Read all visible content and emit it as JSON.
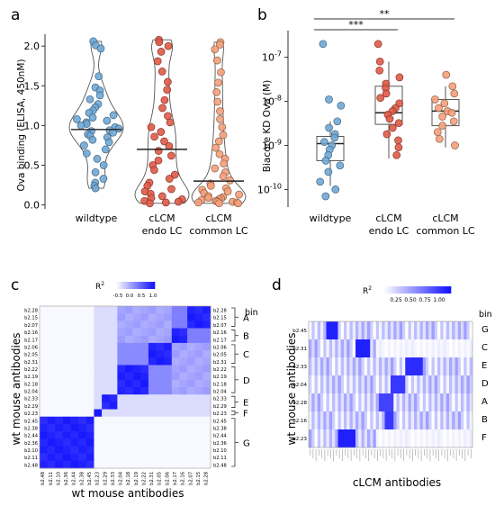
{
  "panels": {
    "a": "a",
    "b": "b",
    "c": "c",
    "d": "d"
  },
  "chart_data": [
    {
      "id": "a",
      "type": "violin",
      "ylabel": "Ova binding (ELISA, 450nM)",
      "ylim": [
        -0.05,
        2.15
      ],
      "yticks": [
        "0.0",
        "0.5",
        "1.0",
        "1.5",
        "2.0"
      ],
      "categories": [
        [
          "wildtype"
        ],
        [
          "cLCM",
          "endo LC"
        ],
        [
          "cLCM",
          "common LC"
        ]
      ],
      "colors": [
        "#6fa8d6",
        "#e05a47",
        "#f4a07a"
      ],
      "medians": [
        0.95,
        0.7,
        0.3
      ],
      "series": [
        {
          "values": [
            2.06,
            2.01,
            1.97,
            1.62,
            1.48,
            1.44,
            1.38,
            1.33,
            1.27,
            1.23,
            1.19,
            1.16,
            1.13,
            1.1,
            1.08,
            1.06,
            1.04,
            1.02,
            1.0,
            0.98,
            0.96,
            0.94,
            0.93,
            0.91,
            0.89,
            0.87,
            0.85,
            0.82,
            0.79,
            0.75,
            0.7,
            0.65,
            0.58,
            0.5,
            0.41,
            0.33,
            0.28,
            0.24,
            0.21
          ]
        },
        {
          "values": [
            2.08,
            2.05,
            2.0,
            1.93,
            1.81,
            1.68,
            1.55,
            1.45,
            1.32,
            1.22,
            1.12,
            1.04,
            0.98,
            0.92,
            0.86,
            0.8,
            0.74,
            0.68,
            0.62,
            0.56,
            0.5,
            0.44,
            0.38,
            0.33,
            0.28,
            0.24,
            0.2,
            0.17,
            0.14,
            0.11,
            0.09,
            0.07,
            0.05,
            0.04,
            0.03,
            0.02
          ]
        },
        {
          "values": [
            2.05,
            2.02,
            1.96,
            1.82,
            1.67,
            1.54,
            1.42,
            1.3,
            1.18,
            1.08,
            0.98,
            0.88,
            0.8,
            0.72,
            0.64,
            0.58,
            0.52,
            0.46,
            0.41,
            0.36,
            0.31,
            0.27,
            0.24,
            0.21,
            0.19,
            0.17,
            0.15,
            0.13,
            0.11,
            0.1,
            0.09,
            0.08,
            0.07,
            0.06,
            0.05,
            0.05,
            0.04,
            0.04,
            0.03,
            0.03,
            0.02,
            0.02
          ]
        }
      ]
    },
    {
      "id": "b",
      "type": "box",
      "ylabel": "Biacore KD Ova (M)",
      "ylim_log10": [
        -10.4,
        -6.6
      ],
      "yticks": [
        -10,
        -9,
        -8,
        -7
      ],
      "categories": [
        [
          "wildtype"
        ],
        [
          "cLCM",
          "endo LC"
        ],
        [
          "cLCM",
          "common LC"
        ]
      ],
      "colors": [
        "#6fa8d6",
        "#e05a47",
        "#f4a07a"
      ],
      "boxes": [
        {
          "q1": 4.5e-10,
          "median": 1.1e-09,
          "q3": 1.6e-09,
          "lo": 1.2e-10,
          "hi": 3.5e-09
        },
        {
          "q1": 3e-09,
          "median": 5.5e-09,
          "q3": 2.2e-08,
          "lo": 5e-10,
          "hi": 8e-08
        },
        {
          "q1": 2.8e-09,
          "median": 6e-09,
          "q3": 1.1e-08,
          "lo": 9e-10,
          "hi": 2.2e-08
        }
      ],
      "series": [
        {
          "values": [
            2e-07,
            1.1e-08,
            8e-09,
            3.5e-09,
            2.5e-09,
            1.8e-09,
            1.5e-09,
            1.2e-09,
            1e-09,
            8e-10,
            6e-10,
            4.5e-10,
            3.5e-10,
            2.5e-10,
            1.5e-10,
            1e-10,
            7e-11
          ]
        },
        {
          "values": [
            2e-07,
            8e-08,
            5e-08,
            3.5e-08,
            2.5e-08,
            2e-08,
            1.5e-08,
            1.2e-08,
            9e-09,
            7e-09,
            6e-09,
            5e-09,
            4e-09,
            3.2e-09,
            2.5e-09,
            1.8e-09,
            1.3e-09,
            9e-10,
            6e-10
          ]
        },
        {
          "values": [
            4e-08,
            2.2e-08,
            1.5e-08,
            1.1e-08,
            9e-09,
            7e-09,
            6e-09,
            5.5e-09,
            4.5e-09,
            3.5e-09,
            2.8e-09,
            2e-09,
            1.4e-09,
            1e-09
          ]
        }
      ],
      "significance": [
        {
          "label": "***",
          "from": 0,
          "to": 1
        },
        {
          "label": "**",
          "from": 0,
          "to": 2
        }
      ]
    },
    {
      "id": "c",
      "type": "heatmap",
      "legend_title": "R",
      "legend_sup": "2",
      "legend_ticks": [
        "-0.5",
        "0.0",
        "0.5",
        "1.0"
      ],
      "xlabel": "wt mouse antibodies",
      "ylabel": "wt mouse antibodies",
      "bin_title": "bin",
      "row_labels": [
        "b2.28",
        "b2.15",
        "b2.07",
        "b2.16",
        "b2.17",
        "b2.06",
        "b2.05",
        "b2.31",
        "b2.22",
        "b2.19",
        "b2.18",
        "b2.04",
        "b2.33",
        "b2.29",
        "b2.23",
        "b2.45",
        "b2.38",
        "b2.44",
        "b2.36",
        "b2.10",
        "b2.11",
        "b2.48"
      ],
      "col_labels": [
        "b2.48",
        "b2.11",
        "b2.10",
        "b2.36",
        "b2.44",
        "b2.38",
        "b2.45",
        "b2.23",
        "b2.29",
        "b2.33",
        "b2.04",
        "b2.18",
        "b2.19",
        "b2.22",
        "b2.31",
        "b2.05",
        "b2.06",
        "b2.17",
        "b2.16",
        "b2.07",
        "b2.15",
        "b2.28"
      ],
      "bins": [
        {
          "name": "A",
          "rows": [
            0,
            2
          ]
        },
        {
          "name": "B",
          "rows": [
            3,
            4
          ]
        },
        {
          "name": "C",
          "rows": [
            5,
            7
          ]
        },
        {
          "name": "D",
          "rows": [
            8,
            11
          ]
        },
        {
          "name": "E",
          "rows": [
            12,
            13
          ]
        },
        {
          "name": "F",
          "rows": [
            14,
            14
          ]
        },
        {
          "name": "G",
          "rows": [
            15,
            21
          ]
        }
      ]
    },
    {
      "id": "d",
      "type": "heatmap",
      "legend_title": "R",
      "legend_sup": "2",
      "legend_ticks": [
        "0.25",
        "0.50",
        "0.75",
        "1.00"
      ],
      "xlabel": "cLCM antibodies",
      "ylabel": "wt mouse antibodies",
      "bin_title": "bin",
      "row_labels": [
        "b2.45",
        "b2.31",
        "b2.33",
        "b2.04",
        "b2.28",
        "b2.16",
        "b2.23"
      ],
      "row_bins": [
        "G",
        "C",
        "E",
        "D",
        "A",
        "B",
        "F"
      ],
      "n_cols": 56
    }
  ]
}
